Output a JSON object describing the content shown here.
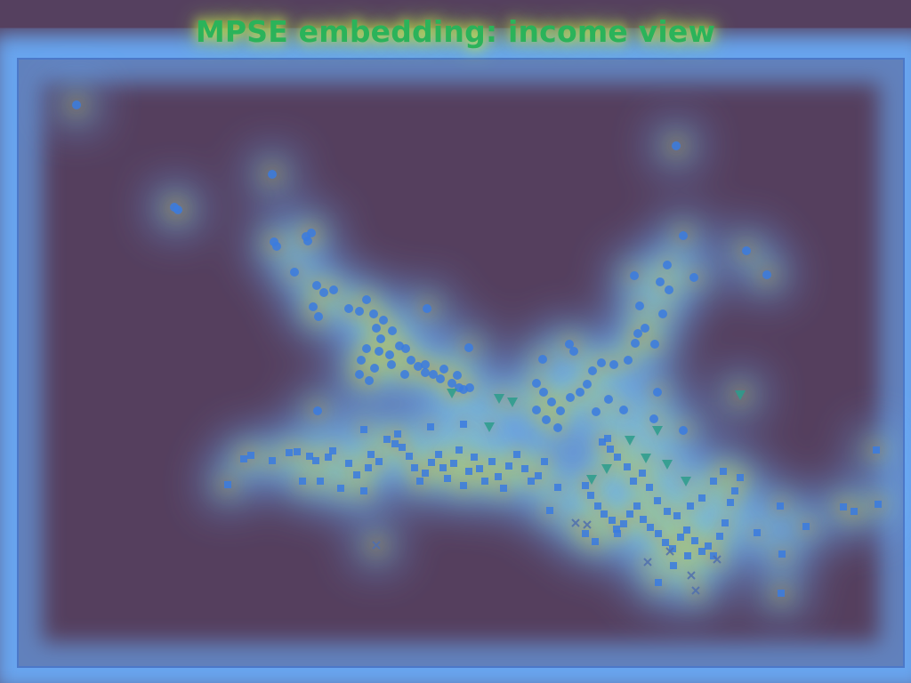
{
  "chart_data": {
    "type": "scatter",
    "title": "MPSE embedding: income view",
    "xlabel": "",
    "ylabel": "",
    "grid": false,
    "overlay": "density heatmap (blue to red)",
    "colors": {
      "background": "#55405f",
      "frame": "#4b78c8",
      "heat_low": "#6ab0ff",
      "heat_mid": "#c8f03c",
      "heat_high": "#e0541e"
    },
    "series": [
      {
        "marker": "circle",
        "color": "#3a7be0",
        "points": [
          [
            86,
            118
          ],
          [
            306,
            196
          ],
          [
            196,
            233
          ],
          [
            200,
            236
          ],
          [
            311,
            277
          ],
          [
            308,
            272
          ],
          [
            346,
            271
          ],
          [
            350,
            262
          ],
          [
            344,
            266
          ],
          [
            331,
            306
          ],
          [
            356,
            321
          ],
          [
            364,
            329
          ],
          [
            375,
            326
          ],
          [
            352,
            345
          ],
          [
            358,
            356
          ],
          [
            392,
            347
          ],
          [
            404,
            350
          ],
          [
            412,
            337
          ],
          [
            420,
            353
          ],
          [
            431,
            360
          ],
          [
            423,
            369
          ],
          [
            441,
            372
          ],
          [
            428,
            381
          ],
          [
            449,
            389
          ],
          [
            438,
            399
          ],
          [
            456,
            392
          ],
          [
            462,
            405
          ],
          [
            470,
            412
          ],
          [
            478,
            419
          ],
          [
            487,
            421
          ],
          [
            495,
            426
          ],
          [
            508,
            431
          ],
          [
            516,
            436
          ],
          [
            521,
            438
          ],
          [
            528,
            436
          ],
          [
            514,
            422
          ],
          [
            499,
            415
          ],
          [
            478,
            410
          ],
          [
            455,
            421
          ],
          [
            440,
            410
          ],
          [
            421,
            414
          ],
          [
            406,
            405
          ],
          [
            412,
            392
          ],
          [
            426,
            395
          ],
          [
            404,
            421
          ],
          [
            415,
            428
          ],
          [
            480,
            347
          ],
          [
            527,
            391
          ],
          [
            357,
            462
          ],
          [
            610,
            404
          ],
          [
            640,
            387
          ],
          [
            645,
            395
          ],
          [
            603,
            431
          ],
          [
            611,
            441
          ],
          [
            620,
            452
          ],
          [
            603,
            461
          ],
          [
            614,
            472
          ],
          [
            627,
            481
          ],
          [
            630,
            462
          ],
          [
            641,
            447
          ],
          [
            652,
            441
          ],
          [
            660,
            432
          ],
          [
            666,
            417
          ],
          [
            676,
            408
          ],
          [
            690,
            410
          ],
          [
            706,
            405
          ],
          [
            714,
            386
          ],
          [
            717,
            375
          ],
          [
            725,
            369
          ],
          [
            736,
            387
          ],
          [
            739,
            441
          ],
          [
            735,
            471
          ],
          [
            768,
            484
          ],
          [
            684,
            449
          ],
          [
            670,
            463
          ],
          [
            701,
            461
          ],
          [
            719,
            344
          ],
          [
            713,
            310
          ],
          [
            742,
            317
          ],
          [
            750,
            298
          ],
          [
            752,
            326
          ],
          [
            745,
            353
          ],
          [
            768,
            265
          ],
          [
            780,
            312
          ],
          [
            760,
            164
          ],
          [
            839,
            282
          ],
          [
            862,
            309
          ]
        ]
      },
      {
        "marker": "square",
        "color": "#3a7be0",
        "points": [
          [
            256,
            545
          ],
          [
            274,
            516
          ],
          [
            282,
            512
          ],
          [
            306,
            518
          ],
          [
            325,
            509
          ],
          [
            334,
            508
          ],
          [
            340,
            541
          ],
          [
            348,
            513
          ],
          [
            355,
            518
          ],
          [
            360,
            541
          ],
          [
            369,
            514
          ],
          [
            374,
            507
          ],
          [
            383,
            549
          ],
          [
            392,
            521
          ],
          [
            401,
            534
          ],
          [
            409,
            552
          ],
          [
            414,
            526
          ],
          [
            417,
            511
          ],
          [
            426,
            519
          ],
          [
            435,
            494
          ],
          [
            444,
            499
          ],
          [
            452,
            503
          ],
          [
            460,
            513
          ],
          [
            466,
            526
          ],
          [
            472,
            541
          ],
          [
            478,
            532
          ],
          [
            485,
            520
          ],
          [
            493,
            511
          ],
          [
            498,
            526
          ],
          [
            503,
            538
          ],
          [
            510,
            521
          ],
          [
            516,
            506
          ],
          [
            521,
            546
          ],
          [
            527,
            530
          ],
          [
            533,
            514
          ],
          [
            539,
            527
          ],
          [
            545,
            541
          ],
          [
            553,
            519
          ],
          [
            560,
            536
          ],
          [
            566,
            549
          ],
          [
            572,
            524
          ],
          [
            581,
            511
          ],
          [
            590,
            527
          ],
          [
            597,
            541
          ],
          [
            605,
            535
          ],
          [
            612,
            519
          ],
          [
            618,
            574
          ],
          [
            409,
            483
          ],
          [
            447,
            488
          ],
          [
            484,
            480
          ],
          [
            521,
            477
          ],
          [
            658,
            546
          ],
          [
            664,
            557
          ],
          [
            672,
            569
          ],
          [
            679,
            578
          ],
          [
            688,
            585
          ],
          [
            693,
            595
          ],
          [
            701,
            589
          ],
          [
            708,
            578
          ],
          [
            716,
            569
          ],
          [
            723,
            584
          ],
          [
            731,
            593
          ],
          [
            740,
            600
          ],
          [
            748,
            610
          ],
          [
            756,
            617
          ],
          [
            765,
            604
          ],
          [
            772,
            596
          ],
          [
            781,
            608
          ],
          [
            789,
            620
          ],
          [
            796,
            614
          ],
          [
            802,
            625
          ],
          [
            809,
            603
          ],
          [
            815,
            588
          ],
          [
            821,
            565
          ],
          [
            826,
            552
          ],
          [
            832,
            537
          ],
          [
            813,
            530
          ],
          [
            802,
            541
          ],
          [
            789,
            560
          ],
          [
            776,
            569
          ],
          [
            761,
            580
          ],
          [
            750,
            575
          ],
          [
            739,
            563
          ],
          [
            730,
            548
          ],
          [
            722,
            532
          ],
          [
            712,
            541
          ],
          [
            705,
            525
          ],
          [
            694,
            514
          ],
          [
            686,
            505
          ],
          [
            677,
            497
          ],
          [
            683,
            493
          ],
          [
            694,
            600
          ],
          [
            669,
            609
          ],
          [
            740,
            655
          ],
          [
            757,
            636
          ],
          [
            773,
            625
          ],
          [
            851,
            599
          ],
          [
            877,
            569
          ],
          [
            879,
            623
          ],
          [
            906,
            592
          ],
          [
            878,
            667
          ],
          [
            948,
            570
          ],
          [
            960,
            575
          ],
          [
            987,
            567
          ],
          [
            985,
            506
          ],
          [
            627,
            548
          ],
          [
            658,
            600
          ]
        ]
      },
      {
        "marker": "triangle-down",
        "color": "#2c9c8c",
        "points": [
          [
            561,
            448
          ],
          [
            576,
            452
          ],
          [
            550,
            480
          ],
          [
            508,
            442
          ],
          [
            739,
            484
          ],
          [
            682,
            527
          ],
          [
            665,
            539
          ],
          [
            708,
            495
          ],
          [
            726,
            515
          ],
          [
            750,
            522
          ],
          [
            771,
            541
          ],
          [
            832,
            444
          ]
        ]
      },
      {
        "marker": "x",
        "color": "#4f6fae",
        "points": [
          [
            423,
            613
          ],
          [
            647,
            588
          ],
          [
            660,
            590
          ],
          [
            728,
            632
          ],
          [
            753,
            620
          ],
          [
            777,
            647
          ],
          [
            782,
            664
          ],
          [
            806,
            629
          ]
        ]
      }
    ]
  }
}
